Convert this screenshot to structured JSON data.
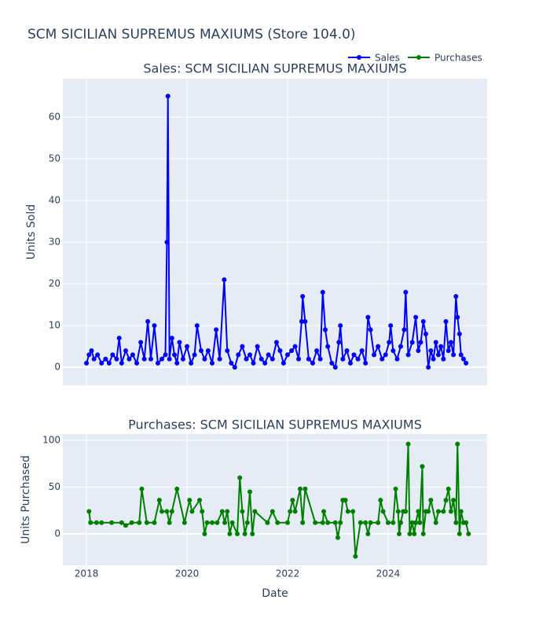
{
  "title": "SCM SICILIAN SUPREMUS MAXIUMS (Store 104.0)",
  "chart_data": [
    {
      "type": "line",
      "title": "Sales: SCM SICILIAN SUPREMUS MAXIUMS",
      "ylabel": "Units Sold",
      "ylim": [
        -4.3,
        69.2
      ],
      "yticks": [
        0,
        10,
        20,
        30,
        40,
        50,
        60
      ],
      "grid": true,
      "x": [
        2018.0,
        2018.05,
        2018.1,
        2018.15,
        2018.22,
        2018.3,
        2018.38,
        2018.45,
        2018.52,
        2018.6,
        2018.65,
        2018.7,
        2018.78,
        2018.85,
        2018.92,
        2019.0,
        2019.08,
        2019.15,
        2019.22,
        2019.28,
        2019.35,
        2019.42,
        2019.5,
        2019.57,
        2019.6,
        2019.62,
        2019.65,
        2019.7,
        2019.75,
        2019.8,
        2019.85,
        2019.92,
        2020.0,
        2020.08,
        2020.15,
        2020.2,
        2020.28,
        2020.35,
        2020.42,
        2020.5,
        2020.58,
        2020.65,
        2020.74,
        2020.8,
        2020.88,
        2020.95,
        2021.02,
        2021.1,
        2021.18,
        2021.25,
        2021.32,
        2021.4,
        2021.48,
        2021.55,
        2021.62,
        2021.7,
        2021.78,
        2021.85,
        2021.92,
        2022.0,
        2022.08,
        2022.15,
        2022.22,
        2022.28,
        2022.3,
        2022.35,
        2022.42,
        2022.5,
        2022.58,
        2022.65,
        2022.7,
        2022.75,
        2022.8,
        2022.88,
        2022.95,
        2023.02,
        2023.05,
        2023.1,
        2023.18,
        2023.25,
        2023.32,
        2023.4,
        2023.48,
        2023.55,
        2023.6,
        2023.65,
        2023.72,
        2023.8,
        2023.88,
        2023.95,
        2024.02,
        2024.05,
        2024.1,
        2024.18,
        2024.25,
        2024.32,
        2024.35,
        2024.4,
        2024.48,
        2024.55,
        2024.6,
        2024.65,
        2024.7,
        2024.75,
        2024.8,
        2024.85,
        2024.9,
        2024.95,
        2025.0,
        2025.05,
        2025.1,
        2025.15,
        2025.2,
        2025.25,
        2025.3,
        2025.35,
        2025.38,
        2025.42,
        2025.45,
        2025.5,
        2025.55
      ],
      "series": [
        {
          "name": "Sales",
          "color": "#0000ff",
          "values": [
            1,
            3,
            4,
            2,
            3,
            1,
            2,
            1,
            3,
            2,
            7,
            1,
            4,
            2,
            3,
            1,
            6,
            2,
            11,
            2,
            10,
            1,
            2,
            3,
            30,
            65,
            2,
            7,
            3,
            1,
            6,
            2,
            5,
            1,
            3,
            10,
            4,
            2,
            4,
            1,
            9,
            2,
            21,
            4,
            1,
            0,
            3,
            5,
            2,
            3,
            1,
            5,
            2,
            1,
            3,
            2,
            6,
            4,
            1,
            3,
            4,
            5,
            2,
            11,
            17,
            11,
            2,
            1,
            4,
            2,
            18,
            9,
            5,
            1,
            0,
            6,
            10,
            2,
            4,
            1,
            3,
            2,
            4,
            1,
            12,
            9,
            3,
            5,
            2,
            3,
            6,
            10,
            4,
            2,
            5,
            9,
            18,
            3,
            6,
            12,
            4,
            6,
            11,
            8,
            0,
            4,
            2,
            6,
            3,
            5,
            2,
            11,
            4,
            6,
            3,
            17,
            12,
            8,
            3,
            2,
            1
          ]
        }
      ]
    },
    {
      "type": "line",
      "title": "Purchases: SCM SICILIAN SUPREMUS MAXIUMS",
      "ylabel": "Units Purchased",
      "xlabel": "Date",
      "xlim": [
        2017.53,
        2025.97
      ],
      "xticks": [
        2018,
        2020,
        2022,
        2024
      ],
      "ylim": [
        -33.6,
        106.7
      ],
      "yticks": [
        0,
        50,
        100
      ],
      "grid": true,
      "x": [
        2018.05,
        2018.08,
        2018.2,
        2018.3,
        2018.5,
        2018.7,
        2018.78,
        2018.9,
        2019.05,
        2019.1,
        2019.2,
        2019.35,
        2019.45,
        2019.5,
        2019.6,
        2019.65,
        2019.7,
        2019.8,
        2019.95,
        2020.05,
        2020.1,
        2020.25,
        2020.3,
        2020.35,
        2020.4,
        2020.5,
        2020.6,
        2020.7,
        2020.75,
        2020.8,
        2020.85,
        2020.9,
        2021.0,
        2021.05,
        2021.1,
        2021.15,
        2021.2,
        2021.25,
        2021.3,
        2021.35,
        2021.6,
        2021.7,
        2021.8,
        2022.0,
        2022.05,
        2022.1,
        2022.15,
        2022.25,
        2022.3,
        2022.35,
        2022.55,
        2022.7,
        2022.72,
        2022.8,
        2022.95,
        2023.0,
        2023.05,
        2023.1,
        2023.15,
        2023.2,
        2023.3,
        2023.35,
        2023.45,
        2023.55,
        2023.6,
        2023.65,
        2023.8,
        2023.85,
        2023.9,
        2024.0,
        2024.1,
        2024.15,
        2024.2,
        2024.22,
        2024.25,
        2024.3,
        2024.35,
        2024.4,
        2024.43,
        2024.48,
        2024.52,
        2024.55,
        2024.6,
        2024.63,
        2024.68,
        2024.7,
        2024.75,
        2024.8,
        2024.85,
        2024.95,
        2025.0,
        2025.1,
        2025.15,
        2025.2,
        2025.25,
        2025.3,
        2025.35,
        2025.38,
        2025.42,
        2025.45,
        2025.5,
        2025.55,
        2025.6
      ],
      "series": [
        {
          "name": "Purchases",
          "color": "#008000",
          "values": [
            24,
            12,
            12,
            12,
            12,
            12,
            9,
            12,
            12,
            48,
            12,
            12,
            36,
            24,
            24,
            12,
            24,
            48,
            12,
            36,
            24,
            36,
            24,
            0,
            12,
            12,
            12,
            24,
            12,
            24,
            0,
            12,
            0,
            60,
            24,
            0,
            12,
            45,
            0,
            24,
            12,
            24,
            12,
            12,
            24,
            36,
            24,
            48,
            12,
            48,
            12,
            12,
            24,
            12,
            12,
            -4,
            12,
            36,
            36,
            24,
            24,
            -24,
            12,
            12,
            0,
            12,
            12,
            36,
            24,
            12,
            12,
            48,
            24,
            0,
            12,
            24,
            24,
            96,
            0,
            12,
            0,
            12,
            24,
            12,
            72,
            0,
            24,
            24,
            36,
            12,
            24,
            24,
            36,
            48,
            24,
            36,
            12,
            96,
            0,
            24,
            12,
            12,
            0
          ]
        }
      ]
    }
  ]
}
